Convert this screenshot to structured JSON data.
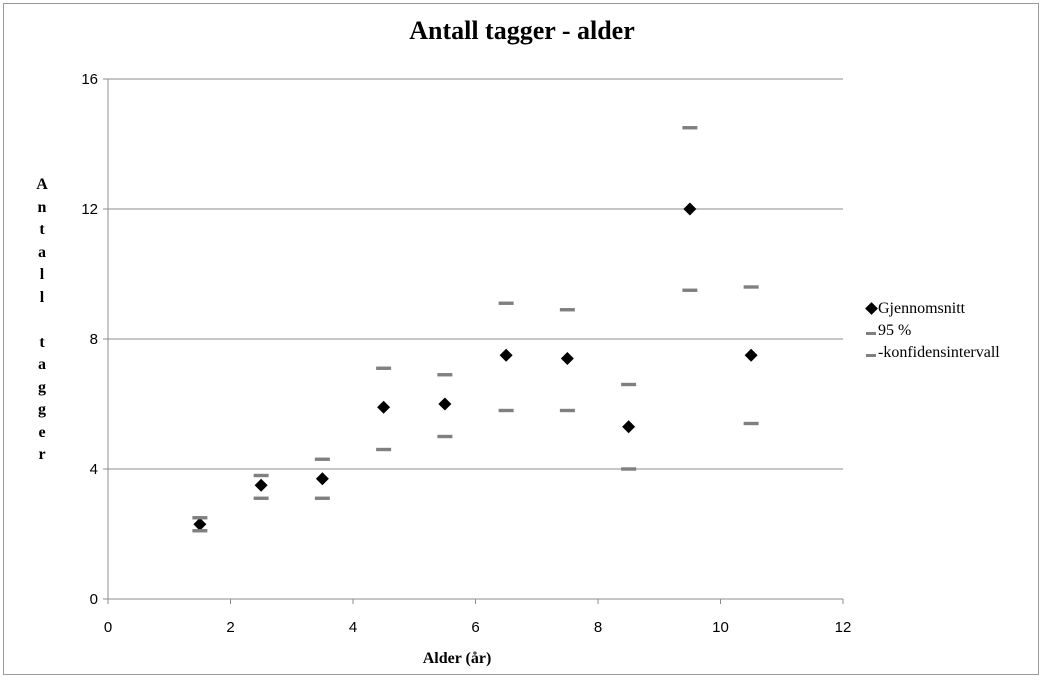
{
  "chart_data": {
    "type": "scatter",
    "title": "Antall tagger - alder",
    "xlabel": "Alder (år)",
    "ylabel": "Antall tagger",
    "xlim": [
      0,
      12
    ],
    "ylim": [
      0,
      16
    ],
    "x_ticks": [
      0,
      2,
      4,
      6,
      8,
      10,
      12
    ],
    "y_ticks": [
      0,
      4,
      8,
      12,
      16
    ],
    "grid": "horizontal",
    "legend_position": "right",
    "series": [
      {
        "name": "Gjennomsnitt",
        "marker": "diamond",
        "color": "#000000",
        "points": [
          {
            "x": 1.5,
            "y": 2.3
          },
          {
            "x": 2.5,
            "y": 3.5
          },
          {
            "x": 3.5,
            "y": 3.7
          },
          {
            "x": 4.5,
            "y": 5.9
          },
          {
            "x": 5.5,
            "y": 6.0
          },
          {
            "x": 6.5,
            "y": 7.5
          },
          {
            "x": 7.5,
            "y": 7.4
          },
          {
            "x": 8.5,
            "y": 5.3
          },
          {
            "x": 9.5,
            "y": 12.0
          },
          {
            "x": 10.5,
            "y": 7.5
          }
        ]
      },
      {
        "name": "95 %",
        "marker": "dash",
        "color": "#808080",
        "points": [
          {
            "x": 1.5,
            "y": 2.5
          },
          {
            "x": 2.5,
            "y": 3.8
          },
          {
            "x": 3.5,
            "y": 4.3
          },
          {
            "x": 4.5,
            "y": 7.1
          },
          {
            "x": 5.5,
            "y": 6.9
          },
          {
            "x": 6.5,
            "y": 9.1
          },
          {
            "x": 7.5,
            "y": 8.9
          },
          {
            "x": 8.5,
            "y": 6.6
          },
          {
            "x": 9.5,
            "y": 14.5
          },
          {
            "x": 10.5,
            "y": 9.6
          }
        ]
      },
      {
        "name": "-konfidensintervall",
        "marker": "dash",
        "color": "#808080",
        "points": [
          {
            "x": 1.5,
            "y": 2.1
          },
          {
            "x": 2.5,
            "y": 3.1
          },
          {
            "x": 3.5,
            "y": 3.1
          },
          {
            "x": 4.5,
            "y": 4.6
          },
          {
            "x": 5.5,
            "y": 5.0
          },
          {
            "x": 6.5,
            "y": 5.8
          },
          {
            "x": 7.5,
            "y": 5.8
          },
          {
            "x": 8.5,
            "y": 4.0
          },
          {
            "x": 9.5,
            "y": 9.5
          },
          {
            "x": 10.5,
            "y": 5.4
          }
        ]
      }
    ]
  },
  "colors": {
    "gridline": "#8c8c8c",
    "axis": "#8c8c8c",
    "mean_marker": "#000000",
    "interval_marker": "#808080"
  }
}
